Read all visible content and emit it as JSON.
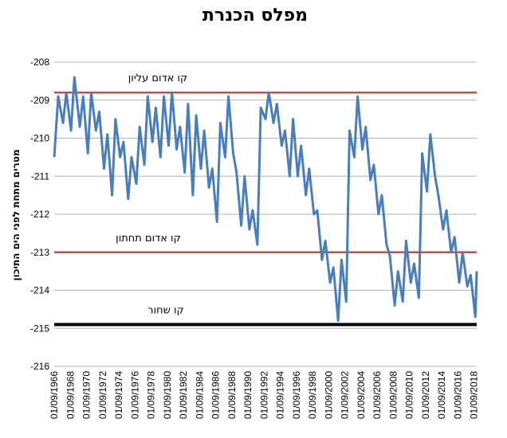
{
  "chart_data": {
    "type": "line",
    "title": "מפלס הכנרת",
    "xlabel": "",
    "ylabel": "מטרים מתחת לפני הים התיכון",
    "ylim": [
      -216,
      -208
    ],
    "yticks": [
      "-208",
      "-209",
      "-210",
      "-211",
      "-212",
      "-213",
      "-214",
      "-215",
      "-216"
    ],
    "xlim": [
      "1966-09-01",
      "2018-12-31"
    ],
    "xticks": [
      "01/09/1966",
      "01/09/1968",
      "01/09/1970",
      "01/09/1972",
      "01/09/1974",
      "01/09/1976",
      "01/09/1978",
      "01/09/1980",
      "01/09/1982",
      "01/09/1984",
      "01/09/1986",
      "01/09/1988",
      "01/09/1990",
      "01/09/1992",
      "01/09/1994",
      "01/09/1996",
      "01/09/1998",
      "01/09/2000",
      "01/09/2002",
      "01/09/2004",
      "01/09/2006",
      "01/09/2008",
      "01/09/2010",
      "01/09/2012",
      "01/09/2014",
      "01/09/2016",
      "01/09/2018"
    ],
    "grid": true,
    "colors": {
      "series": "#4a7ebb",
      "upper": "#c0504d",
      "lower": "#c0504d",
      "black": "#000000",
      "grid": "#b3b3b3"
    },
    "reference_lines": [
      {
        "label": "קו אדום עליון",
        "y": -208.8,
        "color": "#c0504d"
      },
      {
        "label": "קו אדום תחתון",
        "y": -213.0,
        "color": "#c0504d"
      },
      {
        "label": "קו שחור",
        "y": -214.9,
        "color": "#000000"
      }
    ],
    "series": [
      {
        "color": "#4a7ebb",
        "points": [
          [
            "1966-09-01",
            -210.5
          ],
          [
            "1967-03-01",
            -208.9
          ],
          [
            "1967-10-01",
            -209.6
          ],
          [
            "1968-03-01",
            -208.8
          ],
          [
            "1968-10-01",
            -209.8
          ],
          [
            "1969-03-01",
            -208.4
          ],
          [
            "1969-11-01",
            -209.7
          ],
          [
            "1970-04-01",
            -208.9
          ],
          [
            "1970-11-01",
            -210.4
          ],
          [
            "1971-04-01",
            -208.8
          ],
          [
            "1971-11-01",
            -209.8
          ],
          [
            "1972-04-01",
            -209.3
          ],
          [
            "1972-11-01",
            -210.8
          ],
          [
            "1973-04-01",
            -209.9
          ],
          [
            "1973-11-01",
            -211.5
          ],
          [
            "1974-04-01",
            -209.5
          ],
          [
            "1974-11-01",
            -210.5
          ],
          [
            "1975-04-01",
            -210.1
          ],
          [
            "1975-11-01",
            -211.6
          ],
          [
            "1976-04-01",
            -210.5
          ],
          [
            "1976-11-01",
            -211.2
          ],
          [
            "1977-04-01",
            -209.7
          ],
          [
            "1977-11-01",
            -210.7
          ],
          [
            "1978-04-01",
            -208.9
          ],
          [
            "1978-11-01",
            -210.1
          ],
          [
            "1979-04-01",
            -209.2
          ],
          [
            "1979-11-01",
            -210.5
          ],
          [
            "1980-04-01",
            -208.9
          ],
          [
            "1980-11-01",
            -210.2
          ],
          [
            "1981-04-01",
            -208.8
          ],
          [
            "1981-11-01",
            -210.3
          ],
          [
            "1982-04-01",
            -209.7
          ],
          [
            "1982-11-01",
            -210.9
          ],
          [
            "1983-04-01",
            -209.1
          ],
          [
            "1983-11-01",
            -211.5
          ],
          [
            "1984-04-01",
            -209.4
          ],
          [
            "1984-11-01",
            -210.8
          ],
          [
            "1985-04-01",
            -209.8
          ],
          [
            "1985-11-01",
            -211.3
          ],
          [
            "1986-04-01",
            -210.8
          ],
          [
            "1986-11-01",
            -212.2
          ],
          [
            "1987-04-01",
            -209.6
          ],
          [
            "1987-11-01",
            -210.5
          ],
          [
            "1988-04-01",
            -208.9
          ],
          [
            "1988-11-01",
            -210.4
          ],
          [
            "1989-04-01",
            -210.9
          ],
          [
            "1989-11-01",
            -212.3
          ],
          [
            "1990-04-01",
            -211.0
          ],
          [
            "1990-11-01",
            -212.4
          ],
          [
            "1991-04-01",
            -211.9
          ],
          [
            "1991-11-01",
            -212.8
          ],
          [
            "1992-04-01",
            -209.2
          ],
          [
            "1992-11-01",
            -209.5
          ],
          [
            "1993-04-01",
            -208.8
          ],
          [
            "1993-11-01",
            -209.6
          ],
          [
            "1994-04-01",
            -209.1
          ],
          [
            "1994-11-01",
            -210.2
          ],
          [
            "1995-04-01",
            -209.8
          ],
          [
            "1995-11-01",
            -211.0
          ],
          [
            "1996-04-01",
            -209.5
          ],
          [
            "1996-11-01",
            -211.0
          ],
          [
            "1997-04-01",
            -210.2
          ],
          [
            "1997-11-01",
            -211.5
          ],
          [
            "1998-04-01",
            -210.8
          ],
          [
            "1998-11-01",
            -212.0
          ],
          [
            "1999-04-01",
            -211.9
          ],
          [
            "1999-11-01",
            -213.2
          ],
          [
            "2000-04-01",
            -212.7
          ],
          [
            "2000-11-01",
            -213.8
          ],
          [
            "2001-04-01",
            -213.4
          ],
          [
            "2001-11-01",
            -214.8
          ],
          [
            "2002-04-01",
            -213.2
          ],
          [
            "2002-11-01",
            -214.3
          ],
          [
            "2003-04-01",
            -209.8
          ],
          [
            "2003-11-01",
            -210.5
          ],
          [
            "2004-04-01",
            -208.9
          ],
          [
            "2004-11-01",
            -210.3
          ],
          [
            "2005-04-01",
            -209.7
          ],
          [
            "2005-11-01",
            -211.1
          ],
          [
            "2006-04-01",
            -210.7
          ],
          [
            "2006-11-01",
            -212.0
          ],
          [
            "2007-04-01",
            -211.5
          ],
          [
            "2007-11-01",
            -212.8
          ],
          [
            "2008-04-01",
            -213.1
          ],
          [
            "2008-11-01",
            -214.4
          ],
          [
            "2009-04-01",
            -213.5
          ],
          [
            "2009-11-01",
            -214.3
          ],
          [
            "2010-04-01",
            -212.7
          ],
          [
            "2010-11-01",
            -213.8
          ],
          [
            "2011-04-01",
            -213.3
          ],
          [
            "2011-11-01",
            -214.2
          ],
          [
            "2012-04-01",
            -210.4
          ],
          [
            "2012-11-01",
            -211.4
          ],
          [
            "2013-04-01",
            -209.9
          ],
          [
            "2013-11-01",
            -211.0
          ],
          [
            "2014-04-01",
            -211.5
          ],
          [
            "2014-11-01",
            -212.4
          ],
          [
            "2015-04-01",
            -211.9
          ],
          [
            "2015-11-01",
            -213.0
          ],
          [
            "2016-04-01",
            -212.6
          ],
          [
            "2016-11-01",
            -213.8
          ],
          [
            "2017-04-01",
            -213.0
          ],
          [
            "2017-11-01",
            -213.9
          ],
          [
            "2018-04-01",
            -213.6
          ],
          [
            "2018-11-01",
            -214.7
          ],
          [
            "2018-12-31",
            -213.5
          ]
        ]
      }
    ]
  }
}
